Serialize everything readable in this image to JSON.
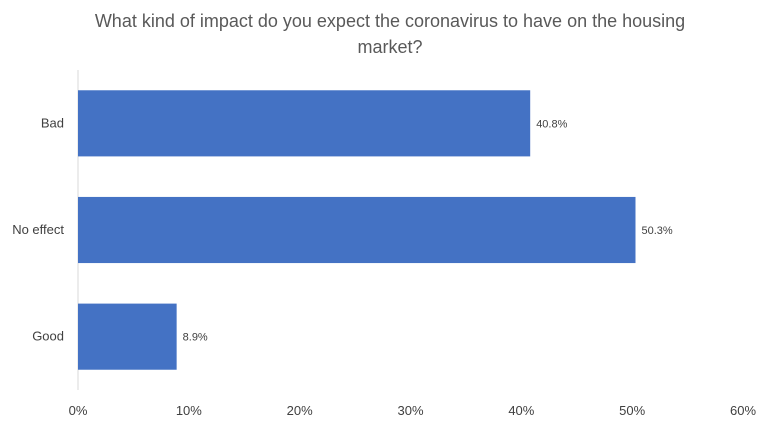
{
  "chart_data": {
    "type": "bar",
    "orientation": "horizontal",
    "title": "What kind of impact do you expect the coronavirus to have on the housing market?",
    "categories": [
      "Bad",
      "No effect",
      "Good"
    ],
    "values": [
      40.8,
      50.3,
      8.9
    ],
    "data_labels": [
      "40.8%",
      "50.3%",
      "8.9%"
    ],
    "xlim": [
      0,
      60
    ],
    "x_ticks": [
      0,
      10,
      20,
      30,
      40,
      50,
      60
    ],
    "x_tick_labels": [
      "0%",
      "10%",
      "20%",
      "30%",
      "40%",
      "50%",
      "60%"
    ],
    "grid": false,
    "legend": "none",
    "bar_color": "#4472C4"
  }
}
